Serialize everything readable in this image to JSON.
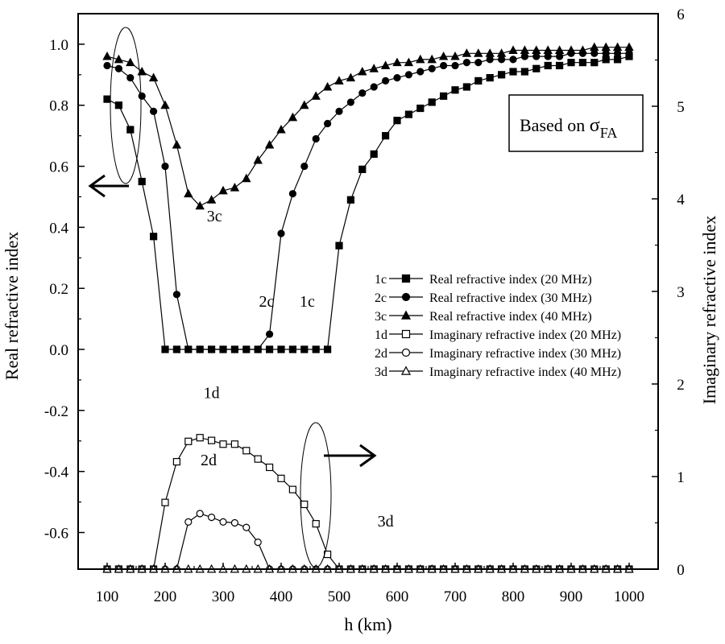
{
  "chart_data": {
    "type": "line",
    "xlabel": "h (km)",
    "ylabel": "Real refractive index",
    "y2label": "Imaginary refractive index",
    "xlim": [
      50,
      1050
    ],
    "ylim": [
      -0.72,
      1.1
    ],
    "y2lim": [
      -0.0,
      6.0
    ],
    "xticks": [
      100,
      200,
      300,
      400,
      500,
      600,
      700,
      800,
      900,
      1000
    ],
    "yticks": [
      1.0,
      0.8,
      0.6,
      0.4,
      0.2,
      0.0,
      -0.2,
      -0.4,
      -0.6
    ],
    "ytick_labels": [
      "1.0",
      "0.8",
      "0.6",
      "0.4",
      "0.2",
      "0.0",
      "-0.2",
      "-0.4",
      "-0.6"
    ],
    "y2ticks": [
      0,
      1,
      2,
      3,
      4,
      5,
      6
    ],
    "annotation_box": {
      "prefix": "Based on ",
      "sigma": "σ",
      "sub": "FA"
    },
    "legend": [
      {
        "id": "1c",
        "label": "Real refractive index (20 MHz)",
        "marker": "square",
        "filled": true
      },
      {
        "id": "2c",
        "label": "Real refractive index (30 MHz)",
        "marker": "circle",
        "filled": true
      },
      {
        "id": "3c",
        "label": "Real refractive index (40 MHz)",
        "marker": "triangle",
        "filled": true
      },
      {
        "id": "1d",
        "label": "Imaginary refractive index (20 MHz)",
        "marker": "square",
        "filled": false
      },
      {
        "id": "2d",
        "label": "Imaginary refractive index (30 MHz)",
        "marker": "circle",
        "filled": false
      },
      {
        "id": "3d",
        "label": "Imaginary refractive index (40 MHz)",
        "marker": "triangle",
        "filled": false
      }
    ],
    "curve_labels": [
      {
        "text": "3c",
        "x": 285,
        "y": 0.42
      },
      {
        "text": "2c",
        "x": 375,
        "y": 0.14
      },
      {
        "text": "1c",
        "x": 445,
        "y": 0.14
      },
      {
        "text": "1d",
        "x": 280,
        "y": -0.16
      },
      {
        "text": "2d",
        "x": 275,
        "y": -0.38
      },
      {
        "text": "3d",
        "x": 580,
        "y": -0.58
      }
    ],
    "series": [
      {
        "name": "1c",
        "axis": "left",
        "marker": "square",
        "filled": true,
        "points": [
          [
            100,
            0.82
          ],
          [
            120,
            0.8
          ],
          [
            140,
            0.72
          ],
          [
            160,
            0.55
          ],
          [
            180,
            0.37
          ],
          [
            200,
            0.0
          ],
          [
            220,
            0.0
          ],
          [
            240,
            0.0
          ],
          [
            260,
            0.0
          ],
          [
            280,
            0.0
          ],
          [
            300,
            0.0
          ],
          [
            320,
            0.0
          ],
          [
            340,
            0.0
          ],
          [
            360,
            0.0
          ],
          [
            380,
            0.0
          ],
          [
            400,
            0.0
          ],
          [
            420,
            0.0
          ],
          [
            440,
            0.0
          ],
          [
            460,
            0.0
          ],
          [
            480,
            0.0
          ],
          [
            500,
            0.34
          ],
          [
            520,
            0.49
          ],
          [
            540,
            0.59
          ],
          [
            560,
            0.64
          ],
          [
            580,
            0.7
          ],
          [
            600,
            0.75
          ],
          [
            620,
            0.77
          ],
          [
            640,
            0.79
          ],
          [
            660,
            0.81
          ],
          [
            680,
            0.83
          ],
          [
            700,
            0.85
          ],
          [
            720,
            0.86
          ],
          [
            740,
            0.88
          ],
          [
            760,
            0.89
          ],
          [
            780,
            0.9
          ],
          [
            800,
            0.91
          ],
          [
            820,
            0.91
          ],
          [
            840,
            0.92
          ],
          [
            860,
            0.93
          ],
          [
            880,
            0.93
          ],
          [
            900,
            0.94
          ],
          [
            920,
            0.94
          ],
          [
            940,
            0.94
          ],
          [
            960,
            0.95
          ],
          [
            980,
            0.95
          ],
          [
            1000,
            0.96
          ]
        ]
      },
      {
        "name": "2c",
        "axis": "left",
        "marker": "circle",
        "filled": true,
        "points": [
          [
            100,
            0.93
          ],
          [
            120,
            0.92
          ],
          [
            140,
            0.89
          ],
          [
            160,
            0.83
          ],
          [
            180,
            0.78
          ],
          [
            200,
            0.6
          ],
          [
            220,
            0.18
          ],
          [
            240,
            0.0
          ],
          [
            260,
            0.0
          ],
          [
            280,
            0.0
          ],
          [
            300,
            0.0
          ],
          [
            320,
            0.0
          ],
          [
            340,
            0.0
          ],
          [
            360,
            0.0
          ],
          [
            380,
            0.05
          ],
          [
            400,
            0.38
          ],
          [
            420,
            0.51
          ],
          [
            440,
            0.6
          ],
          [
            460,
            0.69
          ],
          [
            480,
            0.74
          ],
          [
            500,
            0.78
          ],
          [
            520,
            0.81
          ],
          [
            540,
            0.84
          ],
          [
            560,
            0.86
          ],
          [
            580,
            0.88
          ],
          [
            600,
            0.89
          ],
          [
            620,
            0.9
          ],
          [
            640,
            0.91
          ],
          [
            660,
            0.92
          ],
          [
            680,
            0.93
          ],
          [
            700,
            0.93
          ],
          [
            720,
            0.94
          ],
          [
            740,
            0.94
          ],
          [
            760,
            0.95
          ],
          [
            780,
            0.95
          ],
          [
            800,
            0.95
          ],
          [
            820,
            0.96
          ],
          [
            840,
            0.96
          ],
          [
            860,
            0.96
          ],
          [
            880,
            0.96
          ],
          [
            900,
            0.97
          ],
          [
            920,
            0.97
          ],
          [
            940,
            0.97
          ],
          [
            960,
            0.97
          ],
          [
            980,
            0.97
          ],
          [
            1000,
            0.97
          ]
        ]
      },
      {
        "name": "3c",
        "axis": "left",
        "marker": "triangle",
        "filled": true,
        "points": [
          [
            100,
            0.96
          ],
          [
            120,
            0.95
          ],
          [
            140,
            0.94
          ],
          [
            160,
            0.91
          ],
          [
            180,
            0.89
          ],
          [
            200,
            0.8
          ],
          [
            220,
            0.67
          ],
          [
            240,
            0.51
          ],
          [
            260,
            0.47
          ],
          [
            280,
            0.49
          ],
          [
            300,
            0.52
          ],
          [
            320,
            0.53
          ],
          [
            340,
            0.56
          ],
          [
            360,
            0.62
          ],
          [
            380,
            0.67
          ],
          [
            400,
            0.72
          ],
          [
            420,
            0.76
          ],
          [
            440,
            0.8
          ],
          [
            460,
            0.83
          ],
          [
            480,
            0.86
          ],
          [
            500,
            0.88
          ],
          [
            520,
            0.89
          ],
          [
            540,
            0.91
          ],
          [
            560,
            0.92
          ],
          [
            580,
            0.93
          ],
          [
            600,
            0.94
          ],
          [
            620,
            0.94
          ],
          [
            640,
            0.95
          ],
          [
            660,
            0.95
          ],
          [
            680,
            0.96
          ],
          [
            700,
            0.96
          ],
          [
            720,
            0.97
          ],
          [
            740,
            0.97
          ],
          [
            760,
            0.97
          ],
          [
            780,
            0.97
          ],
          [
            800,
            0.98
          ],
          [
            820,
            0.98
          ],
          [
            840,
            0.98
          ],
          [
            860,
            0.98
          ],
          [
            880,
            0.98
          ],
          [
            900,
            0.98
          ],
          [
            920,
            0.98
          ],
          [
            940,
            0.99
          ],
          [
            960,
            0.99
          ],
          [
            980,
            0.99
          ],
          [
            1000,
            0.99
          ]
        ]
      },
      {
        "name": "1d",
        "axis": "right",
        "marker": "square",
        "filled": false,
        "points": [
          [
            100,
            0.0
          ],
          [
            120,
            0.0
          ],
          [
            140,
            0.0
          ],
          [
            160,
            0.0
          ],
          [
            180,
            0.0
          ],
          [
            200,
            0.72
          ],
          [
            220,
            1.16
          ],
          [
            240,
            1.38
          ],
          [
            260,
            1.42
          ],
          [
            280,
            1.39
          ],
          [
            300,
            1.35
          ],
          [
            320,
            1.35
          ],
          [
            340,
            1.28
          ],
          [
            360,
            1.19
          ],
          [
            380,
            1.1
          ],
          [
            400,
            0.98
          ],
          [
            420,
            0.86
          ],
          [
            440,
            0.7
          ],
          [
            460,
            0.49
          ],
          [
            480,
            0.16
          ],
          [
            500,
            0.0
          ],
          [
            520,
            0.0
          ],
          [
            540,
            0.0
          ],
          [
            560,
            0.0
          ],
          [
            580,
            0.0
          ],
          [
            600,
            0.0
          ],
          [
            620,
            0.0
          ],
          [
            640,
            0.0
          ],
          [
            660,
            0.0
          ],
          [
            680,
            0.0
          ],
          [
            700,
            0.0
          ],
          [
            720,
            0.0
          ],
          [
            740,
            0.0
          ],
          [
            760,
            0.0
          ],
          [
            780,
            0.0
          ],
          [
            800,
            0.0
          ],
          [
            820,
            0.0
          ],
          [
            840,
            0.0
          ],
          [
            860,
            0.0
          ],
          [
            880,
            0.0
          ],
          [
            900,
            0.0
          ],
          [
            920,
            0.0
          ],
          [
            940,
            0.0
          ],
          [
            960,
            0.0
          ],
          [
            980,
            0.0
          ],
          [
            1000,
            0.0
          ]
        ]
      },
      {
        "name": "2d",
        "axis": "right",
        "marker": "circle",
        "filled": false,
        "points": [
          [
            100,
            0.0
          ],
          [
            120,
            0.0
          ],
          [
            140,
            0.0
          ],
          [
            160,
            0.0
          ],
          [
            180,
            0.0
          ],
          [
            200,
            0.0
          ],
          [
            220,
            0.0
          ],
          [
            240,
            0.51
          ],
          [
            260,
            0.6
          ],
          [
            280,
            0.56
          ],
          [
            300,
            0.51
          ],
          [
            320,
            0.5
          ],
          [
            340,
            0.45
          ],
          [
            360,
            0.29
          ],
          [
            380,
            0.0
          ],
          [
            400,
            0.0
          ],
          [
            420,
            0.0
          ],
          [
            440,
            0.0
          ],
          [
            460,
            0.0
          ],
          [
            480,
            0.0
          ],
          [
            500,
            0.0
          ],
          [
            520,
            0.0
          ],
          [
            540,
            0.0
          ],
          [
            560,
            0.0
          ],
          [
            580,
            0.0
          ],
          [
            600,
            0.0
          ],
          [
            620,
            0.0
          ],
          [
            640,
            0.0
          ],
          [
            660,
            0.0
          ],
          [
            680,
            0.0
          ],
          [
            700,
            0.0
          ],
          [
            720,
            0.0
          ],
          [
            740,
            0.0
          ],
          [
            760,
            0.0
          ],
          [
            780,
            0.0
          ],
          [
            800,
            0.0
          ],
          [
            820,
            0.0
          ],
          [
            840,
            0.0
          ],
          [
            860,
            0.0
          ],
          [
            880,
            0.0
          ],
          [
            900,
            0.0
          ],
          [
            920,
            0.0
          ],
          [
            940,
            0.0
          ],
          [
            960,
            0.0
          ],
          [
            980,
            0.0
          ],
          [
            1000,
            0.0
          ]
        ]
      },
      {
        "name": "3d",
        "axis": "right",
        "marker": "triangle",
        "filled": false,
        "points": [
          [
            100,
            0.0
          ],
          [
            120,
            0.0
          ],
          [
            140,
            0.0
          ],
          [
            160,
            0.0
          ],
          [
            180,
            0.0
          ],
          [
            200,
            0.0
          ],
          [
            220,
            0.0
          ],
          [
            240,
            0.0
          ],
          [
            260,
            0.0
          ],
          [
            280,
            0.0
          ],
          [
            300,
            0.0
          ],
          [
            320,
            0.0
          ],
          [
            340,
            0.0
          ],
          [
            360,
            0.0
          ],
          [
            380,
            0.0
          ],
          [
            400,
            0.0
          ],
          [
            420,
            0.0
          ],
          [
            440,
            0.0
          ],
          [
            460,
            0.0
          ],
          [
            480,
            0.0
          ],
          [
            500,
            0.0
          ],
          [
            520,
            0.0
          ],
          [
            540,
            0.0
          ],
          [
            560,
            0.0
          ],
          [
            580,
            0.0
          ],
          [
            600,
            0.0
          ],
          [
            620,
            0.0
          ],
          [
            640,
            0.0
          ],
          [
            660,
            0.0
          ],
          [
            680,
            0.0
          ],
          [
            700,
            0.0
          ],
          [
            720,
            0.0
          ],
          [
            740,
            0.0
          ],
          [
            760,
            0.0
          ],
          [
            780,
            0.0
          ],
          [
            800,
            0.0
          ],
          [
            820,
            0.0
          ],
          [
            840,
            0.0
          ],
          [
            860,
            0.0
          ],
          [
            880,
            0.0
          ],
          [
            900,
            0.0
          ],
          [
            920,
            0.0
          ],
          [
            940,
            0.0
          ],
          [
            960,
            0.0
          ],
          [
            980,
            0.0
          ],
          [
            1000,
            0.0
          ]
        ]
      }
    ]
  }
}
